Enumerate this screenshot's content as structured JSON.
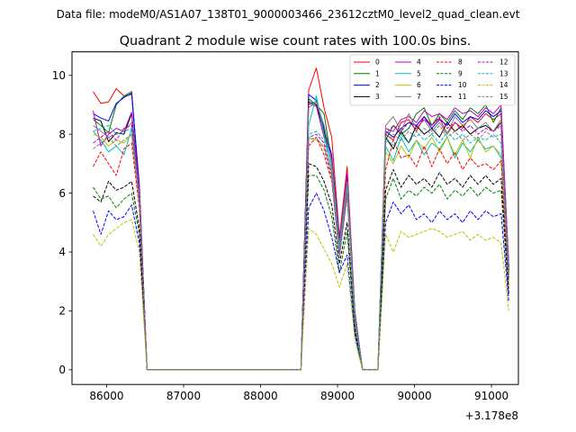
{
  "suptitle": "Data file: modeM0/AS1A07_138T01_9000003466_23612cztM0_level2_quad_clean.evt",
  "chart_data": {
    "type": "line",
    "title": "Quadrant 2 module wise count rates with 100.0s bins.",
    "xlabel": "",
    "ylabel": "",
    "x_offset_label": "+3.178e8",
    "xlim": [
      85550,
      91350
    ],
    "ylim": [
      -0.5,
      10.8
    ],
    "x_ticks": [
      86000,
      87000,
      88000,
      89000,
      90000,
      91000
    ],
    "y_ticks": [
      0,
      2,
      4,
      6,
      8,
      10
    ],
    "x": [
      85825,
      85925,
      86025,
      86125,
      86225,
      86325,
      86425,
      86525,
      86625,
      86725,
      86825,
      86925,
      87025,
      87125,
      87225,
      87325,
      87425,
      87525,
      87625,
      87725,
      87825,
      87925,
      88025,
      88125,
      88225,
      88325,
      88425,
      88525,
      88625,
      88725,
      88825,
      88925,
      89025,
      89125,
      89225,
      89325,
      89425,
      89525,
      89625,
      89725,
      89825,
      89925,
      90025,
      90125,
      90225,
      90325,
      90425,
      90525,
      90625,
      90725,
      90825,
      90925,
      91025,
      91125,
      91225
    ],
    "legend": {
      "position": "upper-right",
      "ncol": 4
    },
    "series": [
      {
        "name": "0",
        "color": "#ff0000",
        "dash": "solid",
        "values": [
          9.45,
          9.05,
          9.1,
          9.55,
          9.3,
          9.35,
          6.3,
          0,
          0,
          0,
          0,
          0,
          0,
          0,
          0,
          0,
          0,
          0,
          0,
          0,
          0,
          0,
          0,
          0,
          0,
          0,
          0,
          0,
          9.5,
          10.25,
          8.9,
          7.9,
          4.5,
          6.9,
          2.0,
          0,
          0,
          0,
          8.0,
          7.8,
          8.4,
          8.5,
          8.1,
          8.6,
          8.3,
          8.55,
          8.0,
          8.4,
          8.2,
          8.6,
          8.4,
          8.7,
          8.5,
          8.7,
          3.5
        ]
      },
      {
        "name": "1",
        "color": "#008000",
        "dash": "solid",
        "values": [
          8.5,
          8.3,
          8.05,
          9.0,
          9.3,
          9.45,
          6.2,
          0,
          0,
          0,
          0,
          0,
          0,
          0,
          0,
          0,
          0,
          0,
          0,
          0,
          0,
          0,
          0,
          0,
          0,
          0,
          0,
          0,
          9.2,
          9.0,
          8.7,
          7.0,
          4.3,
          6.6,
          1.9,
          0,
          0,
          0,
          7.8,
          8.3,
          8.0,
          8.2,
          8.7,
          8.9,
          8.3,
          8.7,
          8.4,
          8.8,
          8.5,
          8.9,
          8.7,
          9.0,
          8.4,
          8.9,
          3.4
        ]
      },
      {
        "name": "2",
        "color": "#0000ff",
        "dash": "solid",
        "values": [
          8.7,
          8.55,
          8.45,
          9.05,
          9.25,
          9.4,
          6.2,
          0,
          0,
          0,
          0,
          0,
          0,
          0,
          0,
          0,
          0,
          0,
          0,
          0,
          0,
          0,
          0,
          0,
          0,
          0,
          0,
          0,
          9.35,
          9.15,
          8.2,
          7.3,
          4.4,
          6.3,
          1.9,
          0,
          0,
          0,
          8.1,
          7.9,
          8.2,
          8.4,
          8.3,
          8.6,
          8.2,
          8.5,
          8.3,
          8.7,
          8.4,
          8.6,
          8.5,
          8.8,
          8.6,
          8.8,
          3.5
        ]
      },
      {
        "name": "3",
        "color": "#000000",
        "dash": "solid",
        "values": [
          8.55,
          8.45,
          7.75,
          8.05,
          8.0,
          8.7,
          6.0,
          0,
          0,
          0,
          0,
          0,
          0,
          0,
          0,
          0,
          0,
          0,
          0,
          0,
          0,
          0,
          0,
          0,
          0,
          0,
          0,
          0,
          9.1,
          9.0,
          8.1,
          7.1,
          4.2,
          6.5,
          1.8,
          0,
          0,
          0,
          7.9,
          7.5,
          8.1,
          7.7,
          8.3,
          8.0,
          8.2,
          7.9,
          8.4,
          8.1,
          8.3,
          8.0,
          8.2,
          8.3,
          8.1,
          8.4,
          3.3
        ]
      },
      {
        "name": "4",
        "color": "#bf00bf",
        "dash": "solid",
        "values": [
          8.8,
          7.6,
          8.0,
          8.2,
          8.1,
          8.75,
          6.1,
          0,
          0,
          0,
          0,
          0,
          0,
          0,
          0,
          0,
          0,
          0,
          0,
          0,
          0,
          0,
          0,
          0,
          0,
          0,
          0,
          0,
          9.05,
          8.95,
          7.9,
          7.2,
          4.3,
          6.7,
          1.9,
          0,
          0,
          0,
          8.2,
          8.1,
          8.5,
          8.6,
          8.4,
          8.8,
          8.6,
          8.7,
          8.5,
          8.9,
          8.7,
          8.8,
          8.6,
          8.9,
          8.7,
          9.0,
          3.4
        ]
      },
      {
        "name": "5",
        "color": "#00bfbf",
        "dash": "solid",
        "values": [
          8.1,
          7.8,
          7.4,
          7.6,
          7.3,
          8.2,
          5.8,
          0,
          0,
          0,
          0,
          0,
          0,
          0,
          0,
          0,
          0,
          0,
          0,
          0,
          0,
          0,
          0,
          0,
          0,
          0,
          0,
          0,
          8.3,
          9.3,
          8.0,
          6.8,
          4.1,
          6.2,
          1.8,
          0,
          0,
          0,
          7.6,
          7.1,
          7.9,
          7.4,
          7.8,
          7.3,
          7.7,
          7.5,
          7.9,
          7.2,
          7.7,
          7.4,
          7.8,
          7.5,
          7.6,
          7.2,
          3.1
        ]
      },
      {
        "name": "6",
        "color": "#bfbf00",
        "dash": "solid",
        "values": [
          8.0,
          7.9,
          7.6,
          7.8,
          7.7,
          8.0,
          5.7,
          0,
          0,
          0,
          0,
          0,
          0,
          0,
          0,
          0,
          0,
          0,
          0,
          0,
          0,
          0,
          0,
          0,
          0,
          0,
          0,
          0,
          7.9,
          7.8,
          7.6,
          6.7,
          4.0,
          6.1,
          1.7,
          0,
          0,
          0,
          7.4,
          7.0,
          7.6,
          7.2,
          7.8,
          7.5,
          7.9,
          7.4,
          7.9,
          7.3,
          7.8,
          7.2,
          7.9,
          7.4,
          7.6,
          7.3,
          3.0
        ]
      },
      {
        "name": "7",
        "color": "#7f7f7f",
        "dash": "solid",
        "values": [
          8.3,
          8.1,
          7.9,
          8.0,
          8.1,
          8.4,
          5.9,
          0,
          0,
          0,
          0,
          0,
          0,
          0,
          0,
          0,
          0,
          0,
          0,
          0,
          0,
          0,
          0,
          0,
          0,
          0,
          0,
          0,
          8.9,
          9.1,
          8.3,
          7.0,
          4.2,
          6.4,
          1.8,
          0,
          0,
          0,
          8.3,
          8.6,
          8.1,
          8.7,
          8.2,
          8.5,
          8.1,
          8.4,
          8.0,
          8.6,
          8.3,
          8.5,
          8.2,
          8.4,
          8.1,
          8.5,
          3.3
        ]
      },
      {
        "name": "8",
        "color": "#ff0000",
        "dash": "dashed",
        "values": [
          6.9,
          7.4,
          7.0,
          6.6,
          7.5,
          7.7,
          5.5,
          0,
          0,
          0,
          0,
          0,
          0,
          0,
          0,
          0,
          0,
          0,
          0,
          0,
          0,
          0,
          0,
          0,
          0,
          0,
          0,
          0,
          7.6,
          7.9,
          7.3,
          6.4,
          3.9,
          5.9,
          1.6,
          0,
          0,
          0,
          6.8,
          7.8,
          7.2,
          7.3,
          6.9,
          7.6,
          6.9,
          7.5,
          7.0,
          7.4,
          6.8,
          7.2,
          6.9,
          7.0,
          6.8,
          7.1,
          2.8
        ]
      },
      {
        "name": "9",
        "color": "#008000",
        "dash": "dashed",
        "values": [
          6.2,
          5.8,
          5.9,
          5.5,
          5.8,
          6.0,
          4.6,
          0,
          0,
          0,
          0,
          0,
          0,
          0,
          0,
          0,
          0,
          0,
          0,
          0,
          0,
          0,
          0,
          0,
          0,
          0,
          0,
          0,
          6.6,
          6.6,
          6.1,
          5.2,
          3.3,
          4.7,
          1.3,
          0,
          0,
          0,
          5.8,
          6.5,
          5.8,
          6.1,
          5.9,
          6.2,
          6.0,
          6.3,
          5.8,
          6.1,
          5.9,
          6.2,
          5.9,
          6.2,
          6.0,
          6.1,
          2.5
        ]
      },
      {
        "name": "10",
        "color": "#0000ff",
        "dash": "dashed",
        "values": [
          5.4,
          4.6,
          5.4,
          5.1,
          5.2,
          5.6,
          4.3,
          0,
          0,
          0,
          0,
          0,
          0,
          0,
          0,
          0,
          0,
          0,
          0,
          0,
          0,
          0,
          0,
          0,
          0,
          0,
          0,
          0,
          5.5,
          6.0,
          5.4,
          4.5,
          3.3,
          3.9,
          1.2,
          0,
          0,
          0,
          5.0,
          5.7,
          5.3,
          5.6,
          5.1,
          5.3,
          5.0,
          5.4,
          5.1,
          5.3,
          5.0,
          5.4,
          5.1,
          5.4,
          5.2,
          5.3,
          2.3
        ]
      },
      {
        "name": "11",
        "color": "#000000",
        "dash": "dashed",
        "values": [
          5.9,
          5.7,
          6.4,
          6.1,
          6.2,
          6.4,
          4.8,
          0,
          0,
          0,
          0,
          0,
          0,
          0,
          0,
          0,
          0,
          0,
          0,
          0,
          0,
          0,
          0,
          0,
          0,
          0,
          0,
          0,
          7.0,
          6.9,
          6.4,
          5.6,
          3.6,
          5.0,
          1.4,
          0,
          0,
          0,
          6.1,
          6.8,
          6.2,
          6.6,
          6.3,
          6.5,
          6.2,
          6.7,
          6.3,
          6.5,
          6.2,
          6.6,
          6.3,
          6.6,
          6.3,
          6.5,
          2.6
        ]
      },
      {
        "name": "12",
        "color": "#bf00bf",
        "dash": "dashed",
        "values": [
          7.7,
          7.9,
          8.1,
          7.8,
          8.2,
          8.3,
          5.8,
          0,
          0,
          0,
          0,
          0,
          0,
          0,
          0,
          0,
          0,
          0,
          0,
          0,
          0,
          0,
          0,
          0,
          0,
          0,
          0,
          0,
          7.9,
          8.0,
          7.7,
          6.6,
          3.9,
          6.0,
          1.7,
          0,
          0,
          0,
          8.0,
          8.3,
          8.1,
          8.4,
          8.2,
          8.5,
          8.3,
          8.6,
          8.2,
          8.4,
          8.1,
          8.3,
          8.0,
          8.2,
          8.1,
          8.3,
          3.2
        ]
      },
      {
        "name": "13",
        "color": "#00bfbf",
        "dash": "dashed",
        "values": [
          8.1,
          8.2,
          8.3,
          8.0,
          8.1,
          8.2,
          5.8,
          0,
          0,
          0,
          0,
          0,
          0,
          0,
          0,
          0,
          0,
          0,
          0,
          0,
          0,
          0,
          0,
          0,
          0,
          0,
          0,
          0,
          8.0,
          8.1,
          7.8,
          6.9,
          4.1,
          6.2,
          1.7,
          0,
          0,
          0,
          7.9,
          7.6,
          8.0,
          7.7,
          8.1,
          7.8,
          8.0,
          7.7,
          8.1,
          7.8,
          8.0,
          7.7,
          7.9,
          7.8,
          8.0,
          7.7,
          3.1
        ]
      },
      {
        "name": "14",
        "color": "#bfbf00",
        "dash": "dashed",
        "values": [
          4.6,
          4.2,
          4.6,
          4.8,
          5.0,
          5.1,
          4.0,
          0,
          0,
          0,
          0,
          0,
          0,
          0,
          0,
          0,
          0,
          0,
          0,
          0,
          0,
          0,
          0,
          0,
          0,
          0,
          0,
          0,
          4.8,
          4.6,
          4.1,
          3.6,
          2.8,
          3.6,
          1.0,
          0,
          0,
          0,
          4.6,
          4.0,
          4.7,
          4.5,
          4.6,
          4.7,
          4.8,
          4.7,
          4.5,
          4.6,
          4.7,
          4.4,
          4.6,
          4.4,
          4.5,
          4.3,
          2.0
        ]
      },
      {
        "name": "15",
        "color": "#7f7f7f",
        "dash": "dashed",
        "values": [
          7.5,
          7.7,
          7.9,
          7.6,
          7.8,
          8.0,
          5.7,
          0,
          0,
          0,
          0,
          0,
          0,
          0,
          0,
          0,
          0,
          0,
          0,
          0,
          0,
          0,
          0,
          0,
          0,
          0,
          0,
          0,
          7.8,
          7.9,
          7.5,
          6.5,
          3.8,
          5.9,
          1.6,
          0,
          0,
          0,
          7.7,
          8.0,
          7.8,
          8.1,
          7.9,
          8.2,
          8.0,
          8.3,
          7.9,
          8.1,
          7.8,
          8.0,
          7.8,
          8.1,
          7.9,
          8.0,
          3.1
        ]
      }
    ]
  }
}
